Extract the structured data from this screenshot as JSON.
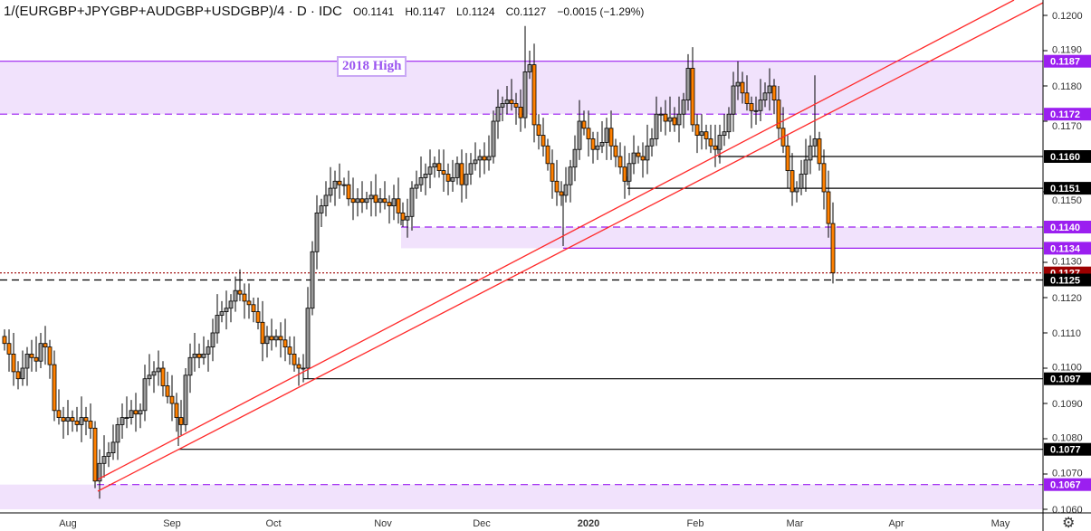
{
  "header": {
    "symbol": "1/(EURGBP+JPYGBP+AUDGBP+USDGBP)/4 · D · IDC",
    "open": "O0.1141",
    "high": "H0.1147",
    "low": "L0.1124",
    "close": "C0.1127",
    "change": "−0.0015 (−1.29%)"
  },
  "annotation": "2018 High",
  "colors": {
    "up": "#9a9a9a",
    "down": "#ff8000",
    "zone": "#f1e2fc",
    "purple": "#9b1ff0",
    "trend": "#ff2a2a",
    "lastprice": "#9c0000"
  },
  "chart_data": {
    "type": "candlestick",
    "title": "1/(EURGBP+JPYGBP+AUDGBP+USDGBP)/4 Daily",
    "ylim": [
      0.1058,
      0.1205
    ],
    "y_ticks": [
      "0.1200",
      "0.1190",
      "0.1180",
      "0.1170",
      "0.1150",
      "0.1130",
      "0.1120",
      "0.1110",
      "0.1100",
      "0.1090",
      "0.1080",
      "0.1070",
      "0.1060"
    ],
    "x_ticks": [
      "Aug",
      "Sep",
      "Oct",
      "Nov",
      "Dec",
      "2020",
      "Feb",
      "Mar",
      "Apr",
      "May"
    ],
    "closes": [
      0.1107,
      0.1104,
      0.1099,
      0.1097,
      0.11,
      0.1104,
      0.1103,
      0.1102,
      0.1107,
      0.1106,
      0.1101,
      0.1088,
      0.1086,
      0.1085,
      0.1086,
      0.1085,
      0.1084,
      0.1086,
      0.1085,
      0.1083,
      0.1068,
      0.1073,
      0.1075,
      0.1076,
      0.1079,
      0.1084,
      0.1086,
      0.1086,
      0.1088,
      0.1087,
      0.1088,
      0.1097,
      0.1098,
      0.1099,
      0.11,
      0.1095,
      0.1092,
      0.109,
      0.1086,
      0.1084,
      0.1098,
      0.1103,
      0.1104,
      0.1103,
      0.1104,
      0.1106,
      0.111,
      0.1115,
      0.1116,
      0.1117,
      0.1119,
      0.1122,
      0.1121,
      0.1119,
      0.1118,
      0.1116,
      0.1113,
      0.1107,
      0.1109,
      0.1108,
      0.1109,
      0.1108,
      0.1106,
      0.1104,
      0.1101,
      0.11,
      0.11,
      0.1117,
      0.1133,
      0.1144,
      0.1146,
      0.1149,
      0.1151,
      0.1153,
      0.1152,
      0.1152,
      0.1148,
      0.1147,
      0.1148,
      0.1147,
      0.1148,
      0.1149,
      0.1147,
      0.1148,
      0.1147,
      0.1146,
      0.1148,
      0.1144,
      0.1142,
      0.1143,
      0.1151,
      0.1152,
      0.1154,
      0.1155,
      0.1157,
      0.1158,
      0.1156,
      0.1155,
      0.1153,
      0.1154,
      0.1158,
      0.1152,
      0.1155,
      0.1158,
      0.1159,
      0.116,
      0.1159,
      0.116,
      0.117,
      0.1174,
      0.1175,
      0.1176,
      0.1175,
      0.1174,
      0.1171,
      0.1184,
      0.1186,
      0.1169,
      0.1166,
      0.1163,
      0.1158,
      0.1153,
      0.115,
      0.1149,
      0.1152,
      0.1157,
      0.1162,
      0.117,
      0.1168,
      0.1165,
      0.1162,
      0.1163,
      0.1164,
      0.1168,
      0.1163,
      0.116,
      0.1157,
      0.1153,
      0.1158,
      0.1161,
      0.116,
      0.1159,
      0.1163,
      0.1165,
      0.1172,
      0.1172,
      0.117,
      0.1171,
      0.1169,
      0.1172,
      0.1176,
      0.1185,
      0.1169,
      0.1166,
      0.1167,
      0.1165,
      0.1163,
      0.1162,
      0.1166,
      0.1167,
      0.1172,
      0.118,
      0.1181,
      0.1178,
      0.1175,
      0.1173,
      0.1173,
      0.1176,
      0.1178,
      0.118,
      0.1176,
      0.1168,
      0.1163,
      0.1156,
      0.115,
      0.1151,
      0.1155,
      0.1159,
      0.1163,
      0.1165,
      0.1158,
      0.115,
      0.1141,
      0.1127
    ],
    "levels": [
      {
        "value": 0.1187,
        "label": "0.1187",
        "style": "solid",
        "color": "#9b1ff0"
      },
      {
        "value": 0.1172,
        "label": "0.1172",
        "style": "dashed",
        "color": "#9b1ff0"
      },
      {
        "value": 0.116,
        "label": "0.1160",
        "style": "solid",
        "color": "#000000"
      },
      {
        "value": 0.1151,
        "label": "0.1151",
        "style": "solid",
        "color": "#000000"
      },
      {
        "value": 0.114,
        "label": "0.1140",
        "style": "dashed",
        "color": "#9b1ff0"
      },
      {
        "value": 0.1134,
        "label": "0.1134",
        "style": "solid",
        "color": "#9b1ff0"
      },
      {
        "value": 0.1127,
        "label": "0.1127",
        "style": "dotted",
        "color": "#9c0000"
      },
      {
        "value": 0.1125,
        "label": "0.1125",
        "style": "dashed",
        "color": "#000000"
      },
      {
        "value": 0.1097,
        "label": "0.1097",
        "style": "solid",
        "color": "#000000"
      },
      {
        "value": 0.1077,
        "label": "0.1077",
        "style": "solid",
        "color": "#000000"
      },
      {
        "value": 0.1067,
        "label": "0.1067",
        "style": "dashed",
        "color": "#9b1ff0"
      }
    ]
  }
}
